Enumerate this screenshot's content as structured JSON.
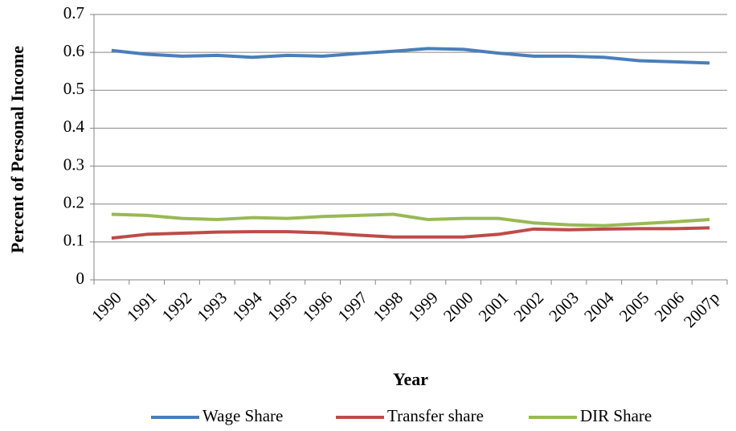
{
  "chart_data": {
    "type": "line",
    "x_label": "Year",
    "y_label": "Percent of Personal Income",
    "categories": [
      "1990",
      "1991",
      "1992",
      "1993",
      "1994",
      "1995",
      "1996",
      "1997",
      "1998",
      "1999",
      "2000",
      "2001",
      "2002",
      "2003",
      "2004",
      "2005",
      "2006",
      "2007p"
    ],
    "series": [
      {
        "name": "Wage Share",
        "color": "#4a7ebb",
        "values": [
          0.605,
          0.595,
          0.59,
          0.592,
          0.587,
          0.592,
          0.59,
          0.597,
          0.603,
          0.61,
          0.608,
          0.598,
          0.59,
          0.59,
          0.587,
          0.578,
          0.575,
          0.572
        ]
      },
      {
        "name": "Transfer share",
        "color": "#be4b48",
        "values": [
          0.11,
          0.12,
          0.123,
          0.126,
          0.127,
          0.127,
          0.124,
          0.118,
          0.113,
          0.113,
          0.113,
          0.12,
          0.134,
          0.132,
          0.134,
          0.135,
          0.135,
          0.137
        ]
      },
      {
        "name": "DIR Share",
        "color": "#98b954",
        "values": [
          0.173,
          0.17,
          0.162,
          0.159,
          0.164,
          0.162,
          0.167,
          0.17,
          0.173,
          0.159,
          0.162,
          0.162,
          0.15,
          0.145,
          0.143,
          0.148,
          0.153,
          0.159
        ]
      }
    ],
    "ylim": [
      0,
      0.7
    ],
    "yticks": [
      0,
      0.1,
      0.2,
      0.3,
      0.4,
      0.5,
      0.6,
      0.7
    ],
    "grid": true,
    "legend": "bottom"
  }
}
